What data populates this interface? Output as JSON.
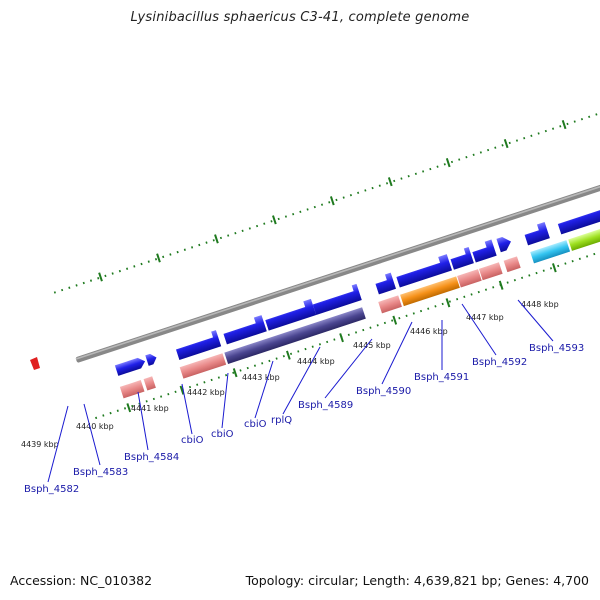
{
  "title": "Lysinibacillus sphaericus C3-41, complete genome",
  "footer": {
    "accession": "Accession: NC_010382",
    "summary": "Topology: circular; Length: 4,639,821 bp; Genes: 4,700"
  },
  "kbp_labels": [
    "4439 kbp",
    "4440 kbp",
    "4441 kbp",
    "4442 kbp",
    "4443 kbp",
    "4444 kbp",
    "4445 kbp",
    "4446 kbp",
    "4447 kbp",
    "4448 kbp"
  ],
  "gene_labels": [
    "Bsph_4582",
    "Bsph_4583",
    "Bsph_4584",
    "cbiO",
    "cbiO",
    "cbiO",
    "rplQ",
    "Bsph_4589",
    "Bsph_4590",
    "Bsph_4591",
    "Bsph_4592",
    "Bsph_4593"
  ],
  "colors": {
    "backbone": "#888888",
    "tick": "#1f7a1f",
    "gene_arrow": "#1a1adb",
    "gene_label": "#1a1aa8",
    "pink": "#e88a8a",
    "purple": "#4a4590",
    "orange": "#f59018",
    "cyan": "#33c4f0",
    "lime": "#9ee020",
    "marker": "#e02020"
  }
}
